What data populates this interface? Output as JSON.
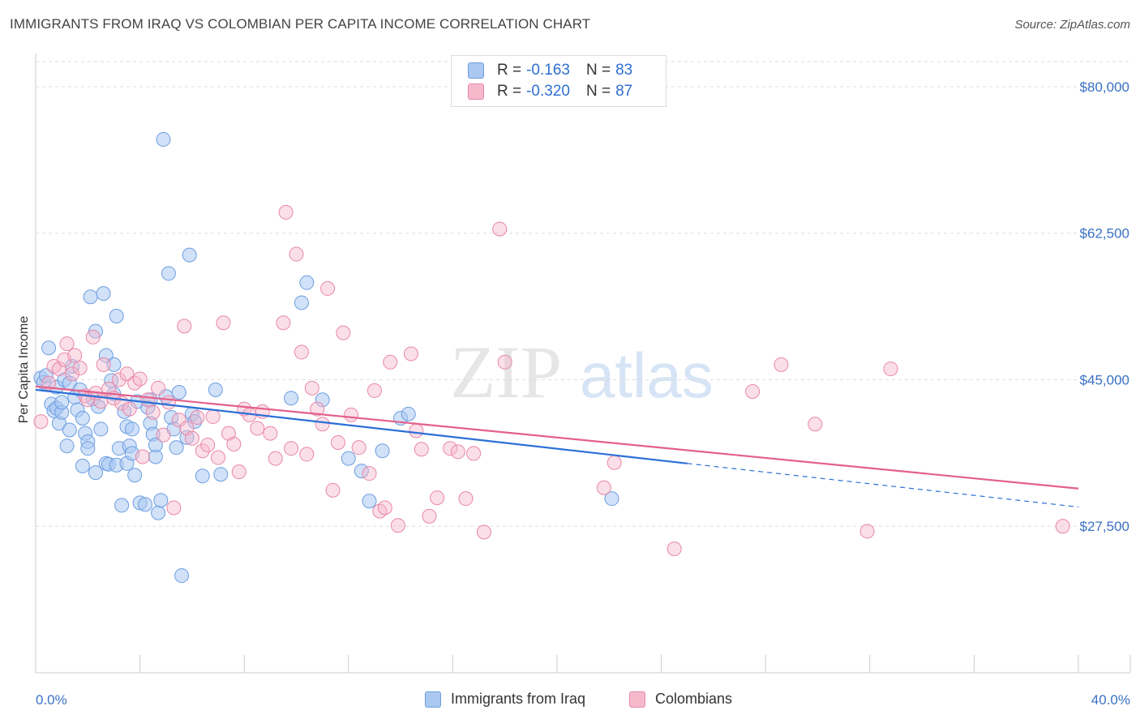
{
  "header": {
    "title": "IMMIGRANTS FROM IRAQ VS COLOMBIAN PER CAPITA INCOME CORRELATION CHART",
    "source": "Source: ZipAtlas.com"
  },
  "watermark": {
    "zip": "ZIP",
    "atlas": "atlas"
  },
  "legend": {
    "rows": [
      {
        "r_label": "R =",
        "r_value": "-0.163",
        "n_label": "N =",
        "n_value": "83",
        "color": "#aac8f2",
        "border": "#6d9ee0"
      },
      {
        "r_label": "R =",
        "r_value": "-0.320",
        "n_label": "N =",
        "n_value": "87",
        "color": "#f6b9cc",
        "border": "#e887a8"
      }
    ]
  },
  "bottom_legend": [
    {
      "label": "Immigrants from Iraq",
      "color": "#aac8f2",
      "border": "#6d9ee0"
    },
    {
      "label": "Colombians",
      "color": "#f6b9cc",
      "border": "#e887a8"
    }
  ],
  "chart_data": {
    "type": "scatter",
    "ylabel": "Per Capita Income",
    "xlim": [
      0,
      40
    ],
    "ylim": [
      10000,
      83000
    ],
    "x_tick_labels": [
      "0.0%",
      "40.0%"
    ],
    "y_ticks": [
      {
        "value": 80000,
        "label": "$80,000"
      },
      {
        "value": 62500,
        "label": "$62,500"
      },
      {
        "value": 45000,
        "label": "$45,000"
      },
      {
        "value": 27500,
        "label": "$27,500"
      }
    ],
    "colors": {
      "iraq_line": "#2b6fd6",
      "colombia_line": "#e3608c",
      "grid": "#dddddd"
    },
    "series": [
      {
        "name": "Immigrants from Iraq",
        "trend": {
          "x0": 0,
          "y0": 43800,
          "x1": 25,
          "y1": 35000,
          "dash_x1": 40,
          "dash_y1": 29800
        },
        "points": [
          [
            0.2,
            45200
          ],
          [
            0.3,
            44700
          ],
          [
            0.4,
            45500
          ],
          [
            0.5,
            48800
          ],
          [
            0.6,
            42100
          ],
          [
            0.7,
            41300
          ],
          [
            0.8,
            44100
          ],
          [
            0.8,
            41600
          ],
          [
            0.9,
            39800
          ],
          [
            1.0,
            41100
          ],
          [
            1.0,
            42300
          ],
          [
            1.1,
            45000
          ],
          [
            1.2,
            37100
          ],
          [
            1.3,
            44600
          ],
          [
            1.3,
            39000
          ],
          [
            1.4,
            46600
          ],
          [
            1.5,
            42900
          ],
          [
            1.6,
            41400
          ],
          [
            1.7,
            43800
          ],
          [
            1.8,
            40400
          ],
          [
            1.8,
            34700
          ],
          [
            1.9,
            38600
          ],
          [
            2.0,
            37600
          ],
          [
            2.0,
            36800
          ],
          [
            2.1,
            54900
          ],
          [
            2.2,
            42700
          ],
          [
            2.3,
            50800
          ],
          [
            2.3,
            33900
          ],
          [
            2.4,
            41800
          ],
          [
            2.5,
            39100
          ],
          [
            2.6,
            55300
          ],
          [
            2.7,
            47900
          ],
          [
            2.7,
            35000
          ],
          [
            2.8,
            34900
          ],
          [
            2.9,
            44900
          ],
          [
            3.0,
            46800
          ],
          [
            3.0,
            43300
          ],
          [
            3.1,
            34800
          ],
          [
            3.1,
            52600
          ],
          [
            3.2,
            36800
          ],
          [
            3.3,
            30000
          ],
          [
            3.4,
            41200
          ],
          [
            3.5,
            39400
          ],
          [
            3.5,
            35000
          ],
          [
            3.6,
            37100
          ],
          [
            3.7,
            39100
          ],
          [
            3.7,
            36200
          ],
          [
            3.8,
            33600
          ],
          [
            3.9,
            42400
          ],
          [
            4.0,
            30300
          ],
          [
            4.2,
            30100
          ],
          [
            4.3,
            41700
          ],
          [
            4.4,
            42600
          ],
          [
            4.4,
            39800
          ],
          [
            4.5,
            38500
          ],
          [
            4.6,
            35800
          ],
          [
            4.6,
            37200
          ],
          [
            4.7,
            29100
          ],
          [
            4.8,
            30600
          ],
          [
            4.9,
            73700
          ],
          [
            5.0,
            43000
          ],
          [
            5.1,
            57700
          ],
          [
            5.2,
            40500
          ],
          [
            5.3,
            39100
          ],
          [
            5.4,
            36900
          ],
          [
            5.5,
            43500
          ],
          [
            5.6,
            21600
          ],
          [
            5.8,
            38100
          ],
          [
            5.9,
            59900
          ],
          [
            6.0,
            40900
          ],
          [
            6.1,
            40000
          ],
          [
            6.4,
            33500
          ],
          [
            6.9,
            43800
          ],
          [
            7.1,
            33700
          ],
          [
            9.8,
            42800
          ],
          [
            10.2,
            54200
          ],
          [
            10.4,
            56600
          ],
          [
            11.0,
            42600
          ],
          [
            12.0,
            35600
          ],
          [
            12.5,
            34100
          ],
          [
            12.8,
            30500
          ],
          [
            13.3,
            36500
          ],
          [
            14.0,
            40400
          ],
          [
            14.3,
            40900
          ],
          [
            22.1,
            30800
          ]
        ]
      },
      {
        "name": "Colombians",
        "trend": {
          "x0": 0,
          "y0": 44200,
          "x1": 40,
          "y1": 32000
        },
        "points": [
          [
            0.2,
            40000
          ],
          [
            0.5,
            44600
          ],
          [
            0.7,
            46600
          ],
          [
            0.9,
            46300
          ],
          [
            1.1,
            47400
          ],
          [
            1.2,
            49300
          ],
          [
            1.4,
            45700
          ],
          [
            1.5,
            47900
          ],
          [
            1.7,
            46400
          ],
          [
            1.9,
            43100
          ],
          [
            2.0,
            42600
          ],
          [
            2.2,
            50100
          ],
          [
            2.3,
            43400
          ],
          [
            2.5,
            42400
          ],
          [
            2.6,
            46800
          ],
          [
            2.8,
            43900
          ],
          [
            3.0,
            42800
          ],
          [
            3.2,
            45000
          ],
          [
            3.3,
            42200
          ],
          [
            3.5,
            45700
          ],
          [
            3.6,
            41500
          ],
          [
            3.8,
            44600
          ],
          [
            4.0,
            45100
          ],
          [
            4.1,
            35800
          ],
          [
            4.3,
            42600
          ],
          [
            4.5,
            41100
          ],
          [
            4.7,
            44000
          ],
          [
            4.9,
            38400
          ],
          [
            5.1,
            42300
          ],
          [
            5.3,
            29700
          ],
          [
            5.5,
            40200
          ],
          [
            5.7,
            51400
          ],
          [
            5.8,
            39200
          ],
          [
            6.0,
            38000
          ],
          [
            6.2,
            40500
          ],
          [
            6.4,
            36500
          ],
          [
            6.6,
            37200
          ],
          [
            6.8,
            40600
          ],
          [
            7.0,
            35700
          ],
          [
            7.2,
            51800
          ],
          [
            7.4,
            38600
          ],
          [
            7.6,
            37300
          ],
          [
            7.8,
            34000
          ],
          [
            8.0,
            41500
          ],
          [
            8.2,
            40800
          ],
          [
            8.5,
            39200
          ],
          [
            8.7,
            41200
          ],
          [
            9.0,
            38600
          ],
          [
            9.2,
            35600
          ],
          [
            9.5,
            51800
          ],
          [
            9.6,
            65000
          ],
          [
            9.8,
            36800
          ],
          [
            10.0,
            60000
          ],
          [
            10.2,
            48300
          ],
          [
            10.4,
            36100
          ],
          [
            10.6,
            44000
          ],
          [
            10.8,
            41500
          ],
          [
            11.0,
            39700
          ],
          [
            11.2,
            55900
          ],
          [
            11.4,
            31800
          ],
          [
            11.6,
            37500
          ],
          [
            11.8,
            50600
          ],
          [
            12.1,
            40800
          ],
          [
            12.4,
            36900
          ],
          [
            12.8,
            33800
          ],
          [
            13.0,
            43700
          ],
          [
            13.2,
            29300
          ],
          [
            13.4,
            29700
          ],
          [
            13.6,
            47100
          ],
          [
            13.9,
            27600
          ],
          [
            14.4,
            48100
          ],
          [
            14.6,
            38900
          ],
          [
            14.8,
            36700
          ],
          [
            15.1,
            28700
          ],
          [
            15.4,
            30900
          ],
          [
            15.9,
            36800
          ],
          [
            16.2,
            36400
          ],
          [
            16.5,
            30800
          ],
          [
            16.8,
            36200
          ],
          [
            17.2,
            26800
          ],
          [
            17.8,
            63000
          ],
          [
            18.0,
            47100
          ],
          [
            21.8,
            32100
          ],
          [
            22.2,
            35100
          ],
          [
            24.5,
            24800
          ],
          [
            27.5,
            43600
          ],
          [
            28.6,
            46800
          ],
          [
            29.9,
            39700
          ],
          [
            31.9,
            26900
          ],
          [
            32.8,
            46300
          ],
          [
            39.4,
            27500
          ]
        ]
      }
    ]
  }
}
